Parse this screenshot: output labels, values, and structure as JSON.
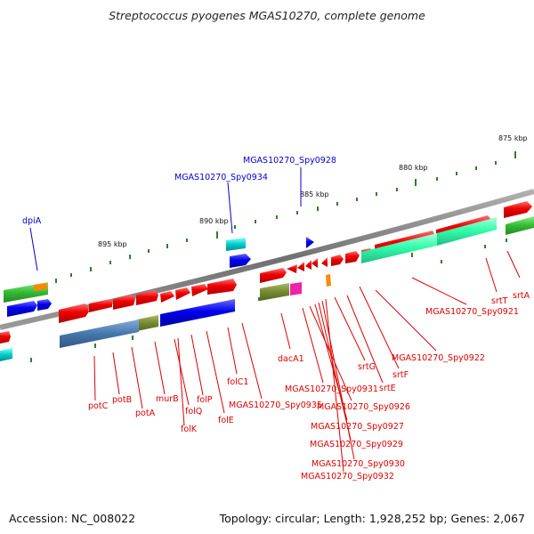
{
  "title": "Streptococcus pyogenes MGAS10270, complete genome",
  "footer": {
    "accession": "Accession: NC_008022",
    "summary": "Topology: circular; Length: 1,928,252 bp; Genes: 2,067"
  },
  "scale_labels": [
    "875 kbp",
    "880 kbp",
    "885 kbp",
    "890 kbp",
    "895 kbp"
  ],
  "gene_labels": {
    "top": [
      "MGAS10270_Spy0928",
      "MGAS10270_Spy0934",
      "dpiA"
    ],
    "bottom": [
      "potC",
      "potB",
      "potA",
      "murB",
      "folQ",
      "folK",
      "folP",
      "folE",
      "folC1",
      "MGAS10270_Spy0935",
      "dacA1",
      "MGAS10270_Spy0931",
      "MGAS10270_Spy0926",
      "MGAS10270_Spy0927",
      "MGAS10270_Spy0929",
      "MGAS10270_Spy0930",
      "MGAS10270_Spy0932",
      "srtG",
      "srtE",
      "srtF",
      "MGAS10270_Spy0922",
      "MGAS10270_Spy0921",
      "srtT",
      "srtA"
    ]
  },
  "colors": {
    "backbone": "#808080",
    "tick": "#2e7d2e",
    "forward_gene": "#e60000",
    "reverse_gene": "#0000e0",
    "label_forward": "#dd0000",
    "label_reverse": "#0000cc",
    "rna": "#33ffaa",
    "teal": "#00cccc",
    "olive": "#778833",
    "green": "#33bb33",
    "steel": "#4477aa",
    "orange": "#ff8800",
    "magenta": "#ee22aa"
  }
}
